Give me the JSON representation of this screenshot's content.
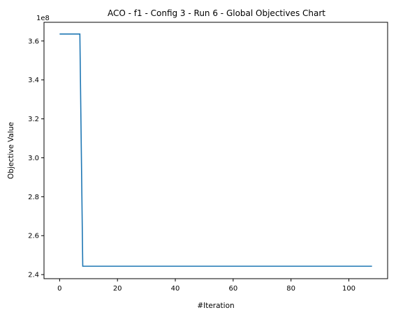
{
  "chart_data": {
    "type": "line",
    "title": "ACO - f1 - Config 3 - Run 6 - Global Objectives Chart",
    "xlabel": "#Iteration",
    "ylabel": "Objective Value",
    "y_offset_label": "1e8",
    "xlim": [
      -5.4,
      113.4
    ],
    "ylim": [
      237900000,
      369600000
    ],
    "x_ticks": [
      0,
      20,
      40,
      60,
      80,
      100
    ],
    "y_ticks": [
      2.4,
      2.6,
      2.8,
      3.0,
      3.2,
      3.4,
      3.6
    ],
    "y_tick_scale": 100000000,
    "grid": false,
    "line_color": "#1f77b4",
    "series": [
      {
        "x": [
          0,
          7,
          8,
          108
        ],
        "y": [
          363600000,
          363600000,
          244300000,
          244300000
        ]
      }
    ]
  }
}
